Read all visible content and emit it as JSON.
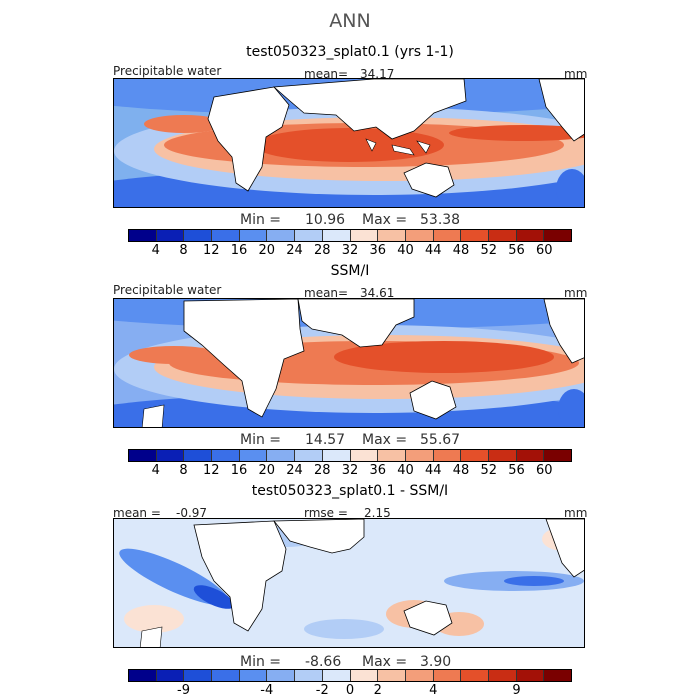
{
  "figure": {
    "title": "ANN"
  },
  "colors": {
    "abs_scale": [
      "#00008b",
      "#0a1fb5",
      "#1e4fd8",
      "#3a6fe8",
      "#5a8ff0",
      "#86aef2",
      "#b2cdf6",
      "#dbe8fa",
      "#fbe2d4",
      "#f7c1a4",
      "#f39e7a",
      "#ee7a52",
      "#e4502a",
      "#c92d14",
      "#a31107",
      "#7a0000"
    ],
    "diff_scale": [
      "#00008b",
      "#0a1fb5",
      "#1e4fd8",
      "#3a6fe8",
      "#5a8ff0",
      "#86aef2",
      "#b2cdf6",
      "#dbe8fa",
      "#fbe2d4",
      "#f7c1a4",
      "#f39e7a",
      "#ee7a52",
      "#e4502a",
      "#c92d14",
      "#a31107",
      "#7a0000"
    ],
    "land": "#ffffff",
    "coast": "#000000"
  },
  "panels": [
    {
      "id": "model",
      "title": "test050323_splat0.1 (yrs 1-1)",
      "left_label": "Precipitable water",
      "stat_label": "mean=",
      "stat_value": "34.17",
      "units": "mm",
      "min_label": "Min =",
      "min_value": "10.96",
      "max_label": "Max =",
      "max_value": "53.38",
      "colorbar_ticks": [
        "4",
        "8",
        "12",
        "16",
        "20",
        "24",
        "28",
        "32",
        "36",
        "40",
        "44",
        "48",
        "52",
        "56",
        "60"
      ]
    },
    {
      "id": "obs",
      "title": "SSM/I",
      "left_label": "Precipitable water",
      "stat_label": "mean=",
      "stat_value": "34.61",
      "units": "mm",
      "min_label": "Min =",
      "min_value": "14.57",
      "max_label": "Max =",
      "max_value": "55.67",
      "colorbar_ticks": [
        "4",
        "8",
        "12",
        "16",
        "20",
        "24",
        "28",
        "32",
        "36",
        "40",
        "44",
        "48",
        "52",
        "56",
        "60"
      ]
    },
    {
      "id": "diff",
      "title": "test050323_splat0.1 - SSM/I",
      "left_label": "mean =",
      "left_value": "-0.97",
      "stat_label": "rmse =",
      "stat_value": "2.15",
      "units": "mm",
      "min_label": "Min =",
      "min_value": "-8.66",
      "max_label": "Max =",
      "max_value": "3.90",
      "colorbar_ticks": [
        "-9",
        "-4",
        "-2",
        "0",
        "2",
        "4",
        "9"
      ]
    }
  ]
}
